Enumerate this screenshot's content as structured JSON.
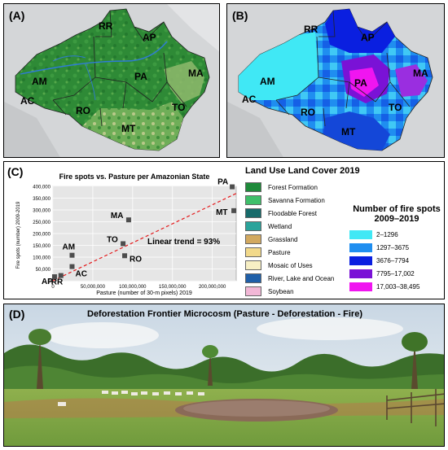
{
  "panel_labels": {
    "a": "(A)",
    "b": "(B)",
    "c": "(C)",
    "d": "(D)"
  },
  "map_states": [
    "RR",
    "AP",
    "AM",
    "PA",
    "MA",
    "AC",
    "RO",
    "TO",
    "MT"
  ],
  "chart_data": {
    "type": "scatter",
    "title": "Fire spots vs. Pasture per Amazonian State",
    "xlabel": "Pasture (number of 30-m pixels) 2019",
    "ylabel": "Fire spots (number) 2009-2019",
    "xlim": [
      0,
      230000000
    ],
    "ylim": [
      0,
      400000
    ],
    "x_ticks": [
      "0",
      "50,000,000",
      "100,000,000",
      "150,000,000",
      "200,000,000"
    ],
    "x_tick_values": [
      0,
      50000000,
      100000000,
      150000000,
      200000000
    ],
    "y_ticks": [
      "0",
      "50,000",
      "100,000",
      "150,000",
      "200,000",
      "250,000",
      "300,000",
      "350,000",
      "400,000"
    ],
    "y_tick_values": [
      0,
      50000,
      100000,
      150000,
      200000,
      250000,
      300000,
      350000,
      400000
    ],
    "points": [
      {
        "label": "PA",
        "x": 225000000,
        "y": 398000
      },
      {
        "label": "MT",
        "x": 227000000,
        "y": 297000
      },
      {
        "label": "MA",
        "x": 95000000,
        "y": 258000
      },
      {
        "label": "TO",
        "x": 88000000,
        "y": 157000
      },
      {
        "label": "RO",
        "x": 90000000,
        "y": 106000
      },
      {
        "label": "AM",
        "x": 24000000,
        "y": 108000
      },
      {
        "label": "AC",
        "x": 24000000,
        "y": 60000
      },
      {
        "label": "RR",
        "x": 10000000,
        "y": 22000
      },
      {
        "label": "AP",
        "x": 2000000,
        "y": 17000
      }
    ],
    "trend": {
      "label": "Linear trend = 93%",
      "x": [
        0,
        230000000
      ],
      "y": [
        0,
        370000
      ]
    },
    "grid": true,
    "colors": {
      "points": "#4d4d4d",
      "trend": "#e41a1c",
      "plot_bg": "#e6e6e6"
    }
  },
  "land_use": {
    "title": "Land Use Land Cover 2019",
    "items": [
      {
        "label": "Forest Formation",
        "color": "#1e8a3a"
      },
      {
        "label": "Savanna Formation",
        "color": "#3fbf6a"
      },
      {
        "label": "Floodable Forest",
        "color": "#176b6b"
      },
      {
        "label": "Wetland",
        "color": "#2aa39b"
      },
      {
        "label": "Grassland",
        "color": "#d2a960"
      },
      {
        "label": "Pasture",
        "color": "#f2d98a"
      },
      {
        "label": "Mosaic of Uses",
        "color": "#f7efc4"
      },
      {
        "label": "River, Lake and Ocean",
        "color": "#1f5fa8"
      },
      {
        "label": "Soybean",
        "color": "#f2b7d6"
      }
    ]
  },
  "fire_legend": {
    "title_line1": "Number of fire spots",
    "title_line2": "2009–2019",
    "items": [
      {
        "label": "2–1296",
        "color": "#40e8f5"
      },
      {
        "label": "1297–3675",
        "color": "#1f8ef0"
      },
      {
        "label": "3676–7794",
        "color": "#0a1fe0"
      },
      {
        "label": "7795–17,002",
        "color": "#7a12d6"
      },
      {
        "label": "17,003–38,495",
        "color": "#f015f0"
      }
    ]
  },
  "photo": {
    "title": "Deforestation Frontier Microcosm (Pasture - Deforestation - Fire)"
  }
}
